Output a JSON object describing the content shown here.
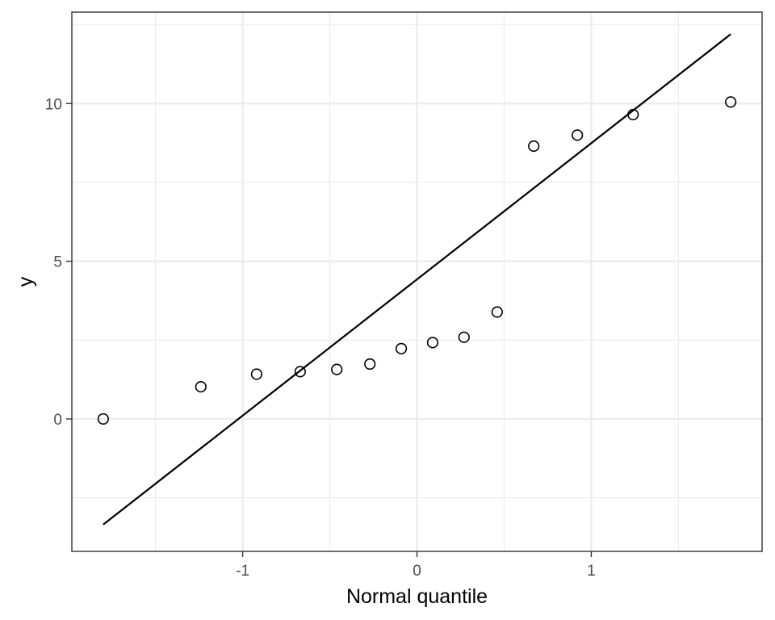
{
  "chart_data": {
    "type": "scatter",
    "title": "",
    "xlabel": "Normal quantile",
    "ylabel": "y",
    "xlim": [
      -1.98,
      1.98
    ],
    "ylim": [
      -4.2,
      12.9
    ],
    "x_major_ticks": [
      -1,
      0,
      1
    ],
    "x_tick_labels": [
      "-1",
      "0",
      "1"
    ],
    "x_minor_ticks": [
      -1.5,
      -0.5,
      0.5,
      1.5
    ],
    "y_major_ticks": [
      0,
      5,
      10
    ],
    "y_tick_labels": [
      "0",
      "5",
      "10"
    ],
    "y_minor_ticks": [
      -2.5,
      2.5,
      7.5,
      12.5
    ],
    "grid": true,
    "legend": "none",
    "series": [
      {
        "points": {
          "x": [
            -1.8,
            -1.24,
            -0.92,
            -0.67,
            -0.46,
            -0.27,
            -0.09,
            0.09,
            0.27,
            0.46,
            0.67,
            0.92,
            1.24,
            1.8
          ],
          "y": [
            0.0,
            1.02,
            1.42,
            1.5,
            1.57,
            1.74,
            2.23,
            2.42,
            2.59,
            3.39,
            8.65,
            9.0,
            9.65,
            10.05
          ]
        }
      }
    ],
    "reference_line": {
      "x": [
        -1.8,
        1.8
      ],
      "y": [
        -3.35,
        12.2
      ]
    },
    "colors": {
      "points": "#000000",
      "line": "#000000",
      "grid": "#ebebeb",
      "border": "#333333",
      "tick_text": "#4d4d4d"
    }
  }
}
